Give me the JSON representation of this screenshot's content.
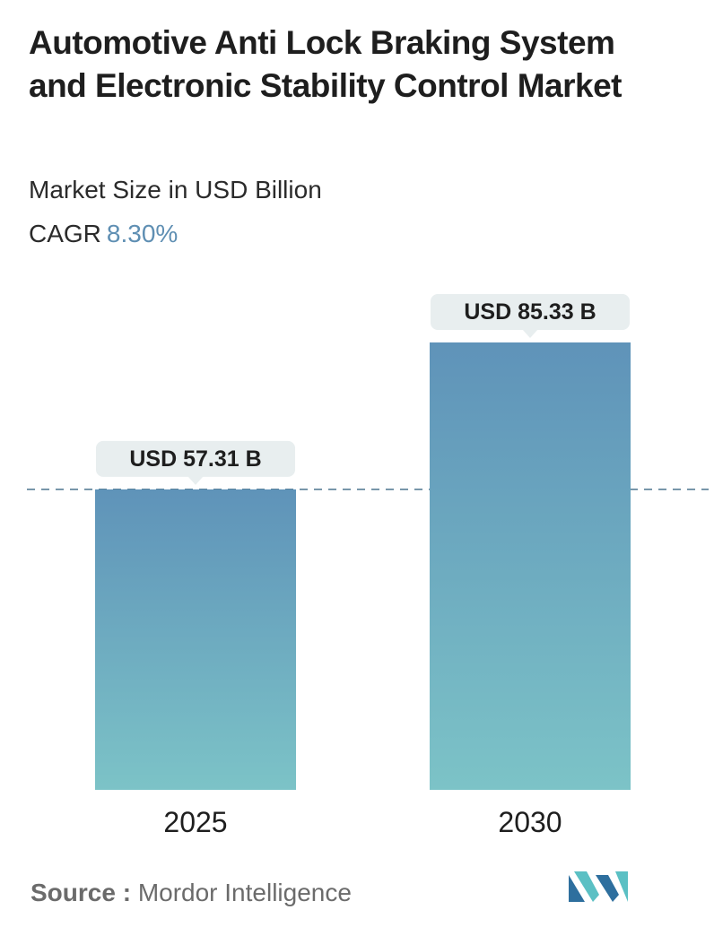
{
  "header": {
    "title": "Automotive Anti Lock Braking System and Electronic Stability Control Market",
    "subtitle": "Market Size in USD Billion",
    "cagr_label": "CAGR",
    "cagr_value": "8.30%"
  },
  "footer": {
    "source_label": "Source :",
    "source_name": "Mordor Intelligence",
    "logo_icon": "mordor-intelligence-logo-icon"
  },
  "colors": {
    "bar_top": "#5f93b9",
    "bar_bottom": "#7cc3c7",
    "label_bg": "#e8eeef",
    "dashed_line": "#5a7f97",
    "cagr_accent": "#5f8fb3",
    "logo_dark": "#2e6f9e",
    "logo_light": "#5bc0c4"
  },
  "chart_data": {
    "type": "bar",
    "categories": [
      "2025",
      "2030"
    ],
    "values": [
      57.31,
      85.33
    ],
    "data_labels": [
      "USD 57.31 B",
      "USD 85.33 B"
    ],
    "title": "Automotive Anti Lock Braking System and Electronic Stability Control Market",
    "ylabel": "Market Size in USD Billion",
    "ylim": [
      0,
      85.33
    ],
    "reference_line": 57.31,
    "grid": false,
    "legend": "none"
  }
}
